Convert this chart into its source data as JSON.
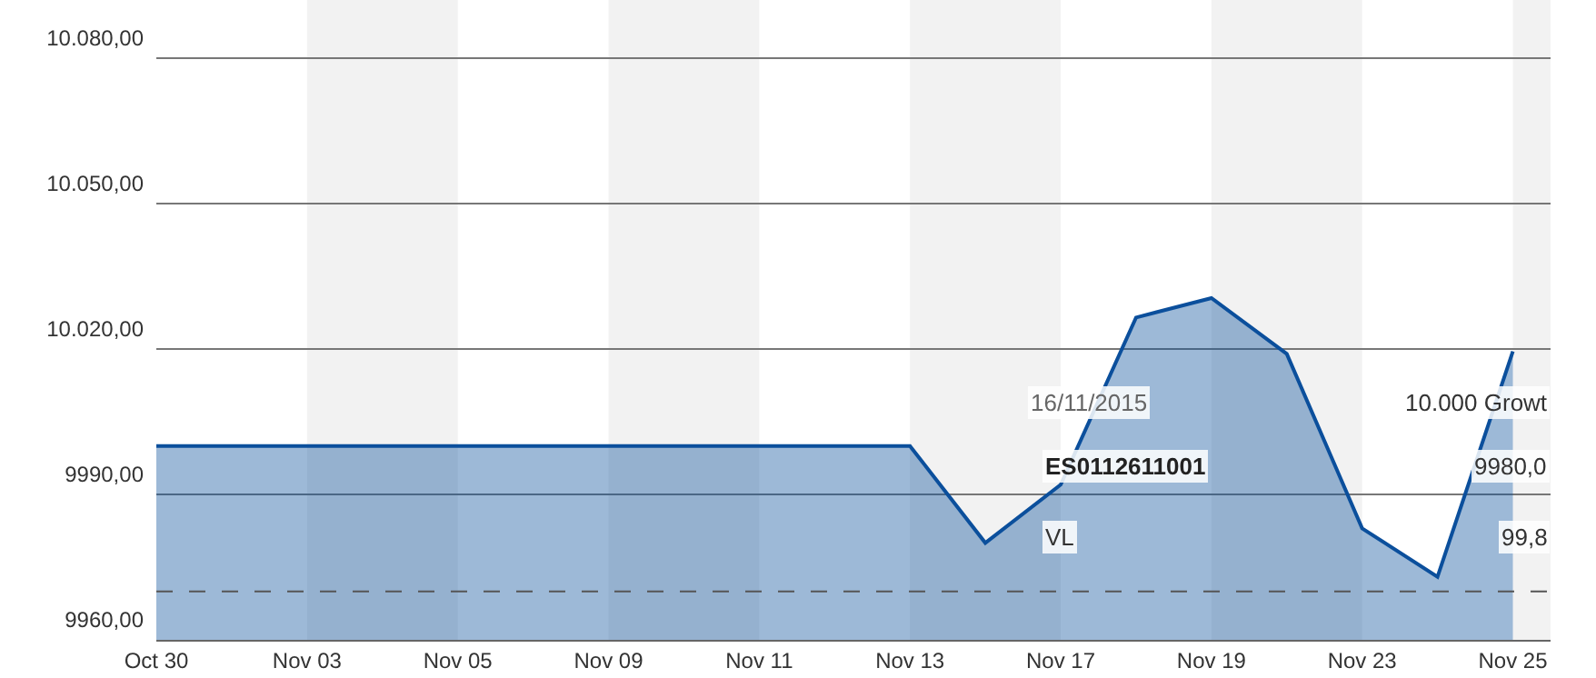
{
  "chart_data": {
    "type": "area",
    "categories": [
      "Oct 30",
      null,
      "Nov 03",
      null,
      "Nov 05",
      null,
      "Nov 09",
      null,
      "Nov 11",
      null,
      "Nov 13",
      null,
      "Nov 17",
      null,
      "Nov 19",
      null,
      "Nov 23",
      null,
      "Nov 25"
    ],
    "series": [
      {
        "color": "#0b4f9c",
        "values": [
          10000,
          10000,
          10000,
          10000,
          10000,
          10000,
          10000,
          10000,
          10000,
          10000,
          10000,
          9980,
          9992,
          10026.5,
          10030.5,
          10019,
          9983,
          9973,
          10019.5
        ]
      }
    ],
    "ylim": [
      9960,
      10092
    ],
    "yticks": [
      {
        "value": 9960,
        "label": "9960,00"
      },
      {
        "value": 9990,
        "label": "9990,00"
      },
      {
        "value": 10020,
        "label": "10.020,00"
      },
      {
        "value": 10050,
        "label": "10.050,00"
      },
      {
        "value": 10080,
        "label": "10.080,00"
      }
    ],
    "grid": "y",
    "marker": "none",
    "line_style": "solid",
    "ref_lines": [
      {
        "axis": "y",
        "value": 9970,
        "label": null,
        "line_style": "dashed",
        "color": "#555555"
      }
    ],
    "bands": [
      {
        "axis": "x",
        "from": "Nov 03",
        "to": "Nov 05",
        "label": null,
        "color": "#f2f2f2"
      },
      {
        "axis": "x",
        "from": "Nov 09",
        "to": "Nov 11",
        "label": null,
        "color": "#f2f2f2"
      },
      {
        "axis": "x",
        "from": "Nov 13",
        "to": "Nov 17",
        "label": null,
        "color": "#f2f2f2"
      },
      {
        "axis": "x",
        "from": "Nov 19",
        "to": "Nov 23",
        "label": null,
        "color": "#f2f2f2"
      },
      {
        "axis": "x",
        "from": "Nov 25",
        "to": "Nov 25",
        "label": null,
        "color": "#f2f2f2"
      }
    ],
    "annotations": [
      "16/11/2015",
      "10.000 Growt",
      "ES0112611001",
      "9980,0",
      "VL",
      "99,8"
    ]
  }
}
